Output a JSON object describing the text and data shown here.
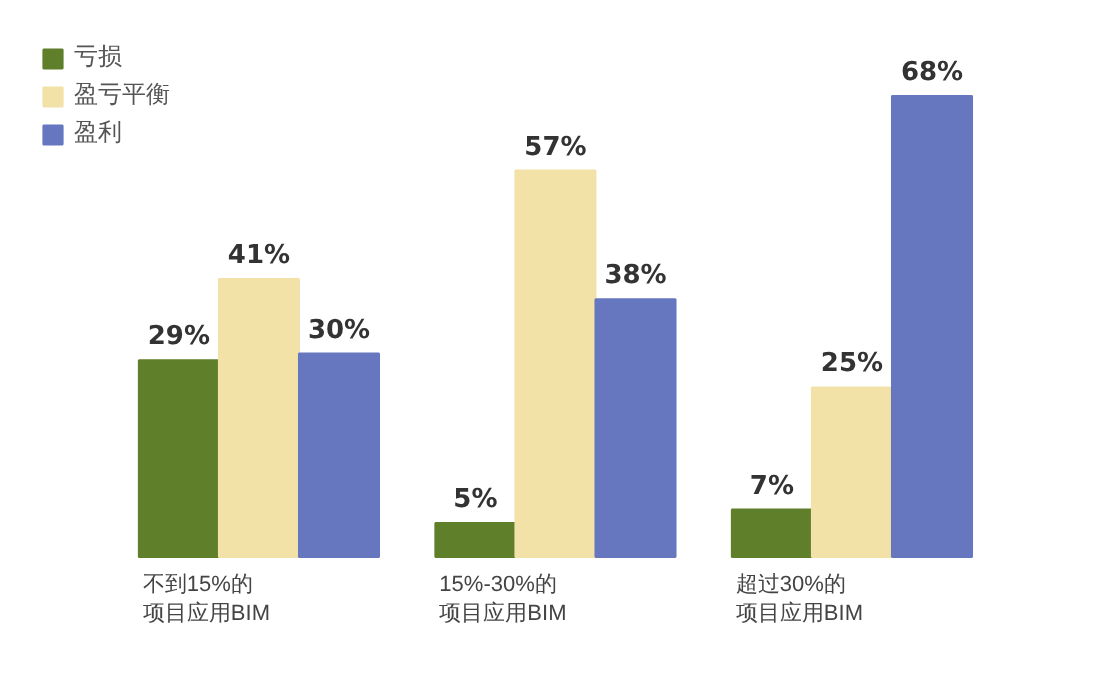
{
  "chart_data": {
    "type": "bar",
    "categories": [
      "不到15%的项目应用BIM",
      "15%-30%的项目应用BIM",
      "超过30%的项目应用BIM"
    ],
    "series": [
      {
        "name": "亏损",
        "color": "#5f7f2a",
        "values": [
          29,
          5,
          7
        ],
        "value_labels": [
          "29%",
          "5%",
          "7%"
        ]
      },
      {
        "name": "盈亏平衡",
        "color": "#f2e2a8",
        "values": [
          41,
          57,
          25
        ],
        "value_labels": [
          "41%",
          "57%",
          "25%"
        ]
      },
      {
        "name": "盈利",
        "color": "#6677c0",
        "values": [
          30,
          38,
          68
        ],
        "value_labels": [
          "30%",
          "38%",
          "68%"
        ]
      }
    ],
    "legend": "top left"
  }
}
